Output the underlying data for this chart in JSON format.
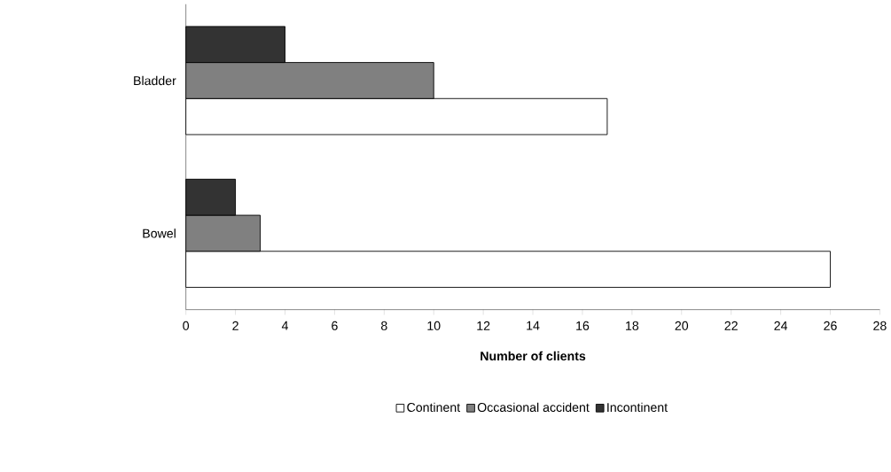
{
  "chart_data": {
    "type": "bar",
    "orientation": "horizontal",
    "xlabel": "Number of clients",
    "categories": [
      "Bladder",
      "Bowel"
    ],
    "series": [
      {
        "name": "Continent",
        "color": "#ffffff",
        "values": [
          17,
          26
        ]
      },
      {
        "name": "Occasional accident",
        "color": "#808080",
        "values": [
          10,
          3
        ]
      },
      {
        "name": "Incontinent",
        "color": "#333333",
        "values": [
          4,
          2
        ]
      }
    ],
    "xlim": [
      0,
      28
    ],
    "xticks": [
      0,
      2,
      4,
      6,
      8,
      10,
      12,
      14,
      16,
      18,
      20,
      22,
      24,
      26,
      28
    ],
    "grid": false,
    "legend": "bottom"
  }
}
